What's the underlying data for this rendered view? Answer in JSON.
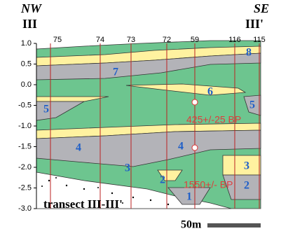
{
  "header": {
    "left_direction": "NW",
    "left_label": "III",
    "right_direction": "SE",
    "right_label": "III'"
  },
  "axis": {
    "ticks": [
      "1.0",
      "0.5",
      "0.0",
      "-0.5",
      "-1.0",
      "-1.5",
      "-2.0",
      "-2.5",
      "-3.0"
    ]
  },
  "cores": [
    "75",
    "74",
    "73",
    "72",
    "59",
    "116",
    "115"
  ],
  "units": [
    "8",
    "7",
    "6",
    "5",
    "5",
    "4",
    "4",
    "3",
    "3",
    "2",
    "2",
    "1"
  ],
  "dates": [
    "425+/-25 BP",
    "1550+/- BP"
  ],
  "caption": "transect III-III'",
  "scale": "50m"
}
